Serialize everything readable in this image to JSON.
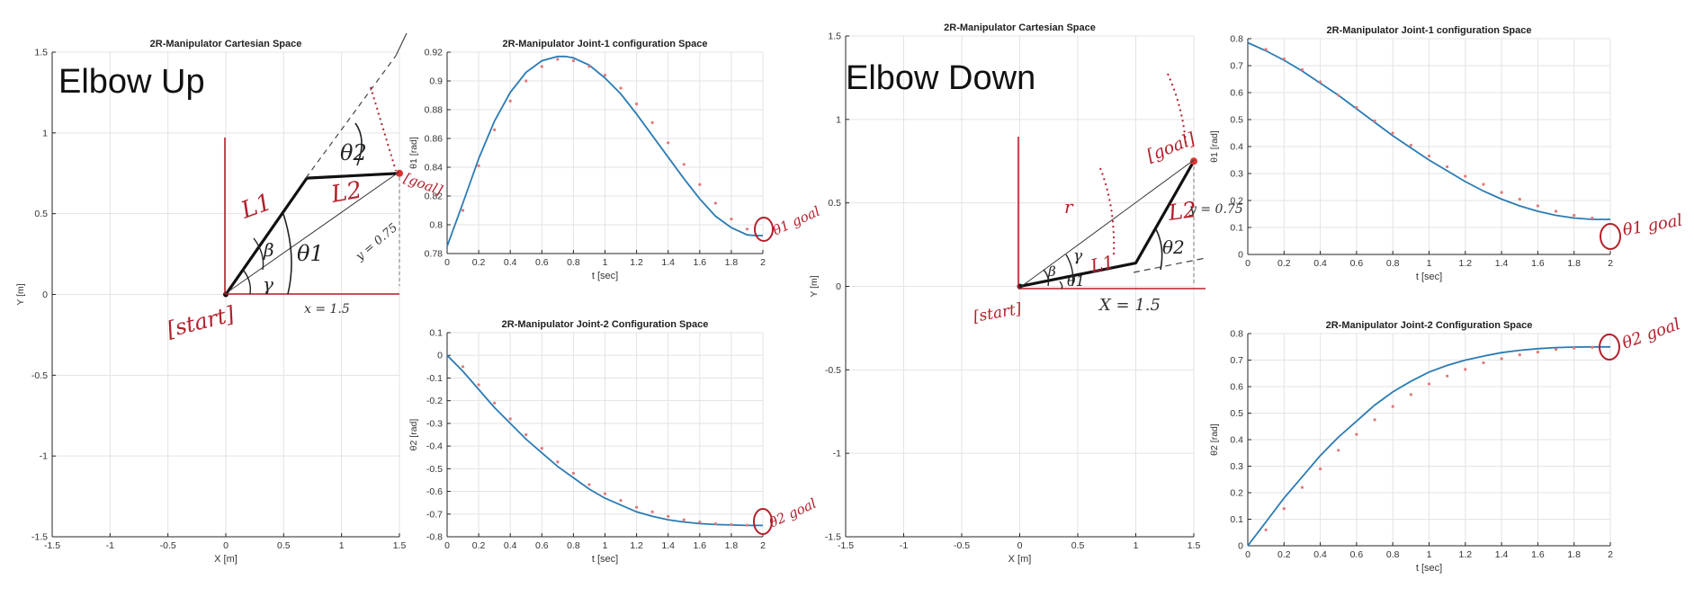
{
  "colors": {
    "axis": "#262626",
    "grid": "#e3e3e3",
    "series_line": "#2b7bb4",
    "series_points": "#e07a7a",
    "link": "#111111",
    "ink_red": "#b3202b",
    "ink_black": "#222222"
  },
  "panels": [
    {
      "id": "elbow-up",
      "heading": "Elbow Up",
      "annotations": {
        "start": "[start]",
        "goal": "[goal]",
        "l1": "L1",
        "l2": "L2",
        "theta1": "θ1",
        "theta2": "θ2",
        "beta": "β",
        "gamma": "γ",
        "x_eq": "x = 1.5",
        "y_eq": "y = 0.75"
      }
    },
    {
      "id": "elbow-down",
      "heading": "Elbow Down",
      "annotations": {
        "start": "[start]",
        "goal": "[goal]",
        "l1": "L1",
        "l2": "L2",
        "theta1": "θ1",
        "theta2": "θ2",
        "beta": "β",
        "gamma": "γ",
        "r": "r",
        "x_eq": "X = 1.5",
        "y_eq": "y = 0.75"
      }
    }
  ],
  "goal_labels": {
    "theta1_goal": "θ1 goal",
    "theta2_goal": "θ2 goal"
  },
  "chart_data": [
    {
      "id": "cart-up",
      "type": "line",
      "title": "2R-Manipulator Cartesian Space",
      "xlabel": "X [m]",
      "ylabel": "Y [m]",
      "xlim": [
        -1.5,
        1.5
      ],
      "ylim": [
        -1.5,
        1.5
      ],
      "xticks": [
        -1.5,
        -1,
        -0.5,
        0,
        0.5,
        1,
        1.5
      ],
      "yticks": [
        -1.5,
        -1,
        -0.5,
        0,
        0.5,
        1,
        1.5
      ],
      "grid": true,
      "links": [
        [
          0,
          0
        ],
        [
          0.7,
          0.72
        ],
        [
          1.5,
          0.75
        ]
      ],
      "goal": [
        1.5,
        0.75
      ]
    },
    {
      "id": "j1-up",
      "type": "line",
      "title": "2R-Manipulator Joint-1 configuration Space",
      "xlabel": "t [sec]",
      "ylabel": "θ1 [rad]",
      "xlim": [
        0,
        2
      ],
      "ylim": [
        0.78,
        0.92
      ],
      "xticks": [
        0,
        0.2,
        0.4,
        0.6,
        0.8,
        1,
        1.2,
        1.4,
        1.6,
        1.8,
        2
      ],
      "yticks": [
        0.78,
        0.8,
        0.82,
        0.84,
        0.86,
        0.88,
        0.9,
        0.92
      ],
      "grid": true,
      "series": [
        {
          "x": [
            0,
            0.1,
            0.2,
            0.3,
            0.4,
            0.5,
            0.6,
            0.7,
            0.75,
            0.8,
            0.9,
            1.0,
            1.1,
            1.2,
            1.3,
            1.4,
            1.5,
            1.6,
            1.7,
            1.8,
            1.9,
            1.95,
            2.0
          ],
          "y": [
            0.785,
            0.815,
            0.846,
            0.872,
            0.892,
            0.906,
            0.914,
            0.917,
            0.917,
            0.916,
            0.911,
            0.902,
            0.891,
            0.877,
            0.862,
            0.847,
            0.832,
            0.818,
            0.806,
            0.798,
            0.793,
            0.7925,
            0.7925
          ]
        }
      ],
      "points": {
        "x": [
          0.1,
          0.2,
          0.3,
          0.4,
          0.5,
          0.6,
          0.7,
          0.8,
          0.9,
          1.0,
          1.1,
          1.2,
          1.3,
          1.4,
          1.5,
          1.6,
          1.7,
          1.8,
          1.9
        ],
        "y": [
          0.81,
          0.841,
          0.866,
          0.886,
          0.9,
          0.91,
          0.915,
          0.914,
          0.91,
          0.904,
          0.895,
          0.884,
          0.871,
          0.857,
          0.842,
          0.828,
          0.815,
          0.804,
          0.797
        ]
      }
    },
    {
      "id": "j2-up",
      "type": "line",
      "title": "2R-Manipulator Joint-2 Configuration Space",
      "xlabel": "t [sec]",
      "ylabel": "θ2 [rad]",
      "xlim": [
        0,
        2
      ],
      "ylim": [
        -0.8,
        0.1
      ],
      "xticks": [
        0,
        0.2,
        0.4,
        0.6,
        0.8,
        1,
        1.2,
        1.4,
        1.6,
        1.8,
        2
      ],
      "yticks": [
        -0.8,
        -0.7,
        -0.6,
        -0.5,
        -0.4,
        -0.3,
        -0.2,
        -0.1,
        0,
        0.1
      ],
      "grid": true,
      "series": [
        {
          "x": [
            0,
            0.1,
            0.2,
            0.3,
            0.4,
            0.5,
            0.6,
            0.7,
            0.8,
            0.9,
            1.0,
            1.1,
            1.2,
            1.3,
            1.4,
            1.5,
            1.6,
            1.7,
            1.8,
            1.9,
            2.0
          ],
          "y": [
            0.0,
            -0.07,
            -0.15,
            -0.23,
            -0.3,
            -0.37,
            -0.43,
            -0.49,
            -0.54,
            -0.59,
            -0.63,
            -0.66,
            -0.69,
            -0.71,
            -0.725,
            -0.735,
            -0.742,
            -0.746,
            -0.748,
            -0.75,
            -0.75
          ]
        }
      ],
      "points": {
        "x": [
          0.1,
          0.2,
          0.3,
          0.4,
          0.5,
          0.6,
          0.7,
          0.8,
          0.9,
          1.0,
          1.1,
          1.2,
          1.3,
          1.4,
          1.5,
          1.6,
          1.7,
          1.8,
          1.9
        ],
        "y": [
          -0.05,
          -0.13,
          -0.21,
          -0.28,
          -0.35,
          -0.41,
          -0.47,
          -0.52,
          -0.57,
          -0.61,
          -0.64,
          -0.67,
          -0.69,
          -0.71,
          -0.725,
          -0.735,
          -0.742,
          -0.746,
          -0.749
        ]
      }
    },
    {
      "id": "cart-down",
      "type": "line",
      "title": "2R-Manipulator Cartesian Space",
      "xlabel": "X [m]",
      "ylabel": "Y [m]",
      "xlim": [
        -1.5,
        1.5
      ],
      "ylim": [
        -1.5,
        1.5
      ],
      "xticks": [
        -1.5,
        -1,
        -0.5,
        0,
        0.5,
        1,
        1.5
      ],
      "yticks": [
        -1.5,
        -1,
        -0.5,
        0,
        0.5,
        1,
        1.5
      ],
      "grid": true,
      "links": [
        [
          0,
          0
        ],
        [
          1.0,
          0.14
        ],
        [
          1.5,
          0.75
        ]
      ],
      "goal": [
        1.5,
        0.75
      ]
    },
    {
      "id": "j1-down",
      "type": "line",
      "title": "2R-Manipulator Joint-1 configuration Space",
      "xlabel": "t [sec]",
      "ylabel": "θ1 [rad]",
      "xlim": [
        0,
        2
      ],
      "ylim": [
        0,
        0.8
      ],
      "xticks": [
        0,
        0.2,
        0.4,
        0.6,
        0.8,
        1,
        1.2,
        1.4,
        1.6,
        1.8,
        2
      ],
      "yticks": [
        0,
        0.1,
        0.2,
        0.3,
        0.4,
        0.5,
        0.6,
        0.7,
        0.8
      ],
      "grid": true,
      "series": [
        {
          "x": [
            0,
            0.1,
            0.2,
            0.3,
            0.4,
            0.5,
            0.6,
            0.7,
            0.8,
            0.9,
            1.0,
            1.1,
            1.2,
            1.3,
            1.4,
            1.5,
            1.6,
            1.7,
            1.8,
            1.9,
            2.0
          ],
          "y": [
            0.785,
            0.755,
            0.72,
            0.68,
            0.635,
            0.59,
            0.54,
            0.49,
            0.44,
            0.395,
            0.35,
            0.31,
            0.27,
            0.235,
            0.205,
            0.18,
            0.16,
            0.145,
            0.135,
            0.13,
            0.13
          ]
        }
      ],
      "points": {
        "x": [
          0.1,
          0.2,
          0.3,
          0.4,
          0.5,
          0.6,
          0.7,
          0.8,
          0.9,
          1.0,
          1.1,
          1.2,
          1.3,
          1.4,
          1.5,
          1.6,
          1.7,
          1.8,
          1.9
        ],
        "y": [
          0.76,
          0.725,
          0.685,
          0.64,
          0.59,
          0.545,
          0.495,
          0.45,
          0.405,
          0.365,
          0.325,
          0.29,
          0.26,
          0.23,
          0.205,
          0.18,
          0.16,
          0.145,
          0.135
        ]
      }
    },
    {
      "id": "j2-down",
      "type": "line",
      "title": "2R-Manipulator Joint-2 Configuration Space",
      "xlabel": "t [sec]",
      "ylabel": "θ2 [rad]",
      "xlim": [
        0,
        2
      ],
      "ylim": [
        0,
        0.8
      ],
      "xticks": [
        0,
        0.2,
        0.4,
        0.6,
        0.8,
        1,
        1.2,
        1.4,
        1.6,
        1.8,
        2
      ],
      "yticks": [
        0,
        0.1,
        0.2,
        0.3,
        0.4,
        0.5,
        0.6,
        0.7,
        0.8
      ],
      "grid": true,
      "series": [
        {
          "x": [
            0,
            0.1,
            0.2,
            0.3,
            0.4,
            0.5,
            0.6,
            0.7,
            0.8,
            0.9,
            1.0,
            1.1,
            1.2,
            1.3,
            1.4,
            1.5,
            1.6,
            1.7,
            1.8,
            1.9,
            2.0
          ],
          "y": [
            0.0,
            0.09,
            0.18,
            0.26,
            0.34,
            0.41,
            0.47,
            0.53,
            0.58,
            0.62,
            0.655,
            0.68,
            0.7,
            0.715,
            0.728,
            0.737,
            0.743,
            0.747,
            0.749,
            0.75,
            0.75
          ]
        }
      ],
      "points": {
        "x": [
          0.1,
          0.2,
          0.3,
          0.4,
          0.5,
          0.6,
          0.7,
          0.8,
          0.9,
          1.0,
          1.1,
          1.2,
          1.3,
          1.4,
          1.5,
          1.6,
          1.7,
          1.8,
          1.9
        ],
        "y": [
          0.06,
          0.14,
          0.22,
          0.29,
          0.36,
          0.42,
          0.475,
          0.525,
          0.57,
          0.61,
          0.64,
          0.665,
          0.69,
          0.705,
          0.72,
          0.73,
          0.74,
          0.745,
          0.748
        ]
      }
    }
  ]
}
